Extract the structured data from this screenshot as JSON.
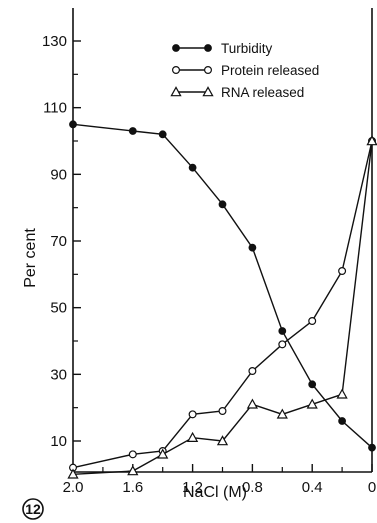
{
  "chart_data": {
    "type": "line",
    "xlabel": "NaCl (M)",
    "ylabel": "Per cent",
    "figure_number": "12",
    "xlim": [
      2.0,
      0
    ],
    "ylim": [
      0,
      140
    ],
    "x_ticks": [
      2.0,
      1.6,
      1.2,
      0.8,
      0.4,
      0
    ],
    "x_tick_labels": [
      "2.0",
      "1.6",
      "1.2",
      "0.8",
      "0.4",
      "0"
    ],
    "y_ticks": [
      10,
      30,
      50,
      70,
      90,
      110,
      130
    ],
    "y_tick_labels": [
      "10",
      "30",
      "50",
      "70",
      "90",
      "110",
      "130"
    ],
    "legend_position": "top-right",
    "series": [
      {
        "name": "Turbidity",
        "marker": "filled-circle",
        "x": [
          2.0,
          1.6,
          1.4,
          1.2,
          1.0,
          0.8,
          0.6,
          0.4,
          0.2,
          0
        ],
        "y": [
          105,
          103,
          102,
          92,
          81,
          68,
          43,
          27,
          16,
          8
        ]
      },
      {
        "name": "Protein released",
        "marker": "open-circle",
        "x": [
          2.0,
          1.6,
          1.4,
          1.2,
          1.0,
          0.8,
          0.6,
          0.4,
          0.2,
          0
        ],
        "y": [
          2,
          6,
          7,
          18,
          19,
          31,
          39,
          46,
          61,
          100
        ]
      },
      {
        "name": "RNA released",
        "marker": "open-triangle",
        "x": [
          2.0,
          1.6,
          1.4,
          1.2,
          1.0,
          0.8,
          0.6,
          0.4,
          0.2,
          0
        ],
        "y": [
          0,
          1,
          6,
          11,
          10,
          21,
          18,
          21,
          24,
          100
        ]
      }
    ]
  }
}
